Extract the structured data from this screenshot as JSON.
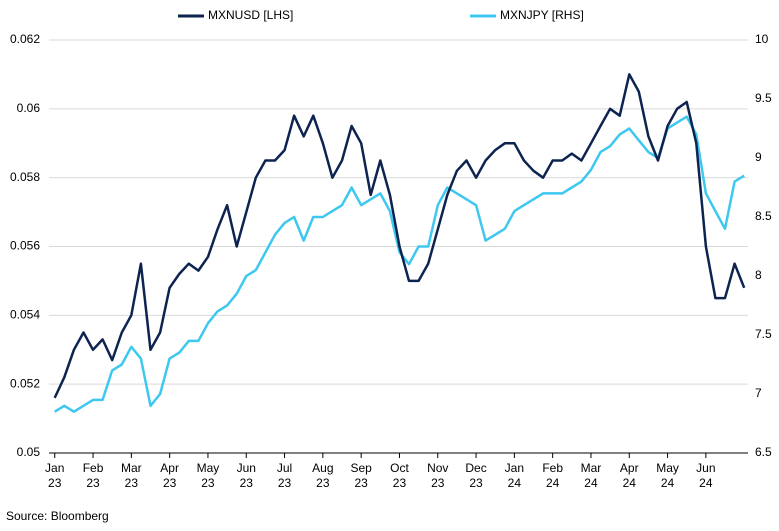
{
  "chart_data": {
    "type": "line",
    "source": "Source: Bloomberg",
    "x": [
      0,
      0.25,
      0.5,
      0.75,
      1,
      1.25,
      1.5,
      1.75,
      2,
      2.25,
      2.5,
      2.75,
      3,
      3.25,
      3.5,
      3.75,
      4,
      4.25,
      4.5,
      4.75,
      5,
      5.25,
      5.5,
      5.75,
      6,
      6.25,
      6.5,
      6.75,
      7,
      7.25,
      7.5,
      7.75,
      8,
      8.25,
      8.5,
      8.75,
      9,
      9.25,
      9.5,
      9.75,
      10,
      10.25,
      10.5,
      10.75,
      11,
      11.25,
      11.5,
      11.75,
      12,
      12.25,
      12.5,
      12.75,
      13,
      13.25,
      13.5,
      13.75,
      14,
      14.25,
      14.5,
      14.75,
      15,
      15.25,
      15.5,
      15.75,
      16,
      16.25,
      16.5,
      16.75,
      17,
      17.25,
      17.5,
      17.75,
      18
    ],
    "xlim": [
      -0.15,
      18.1
    ],
    "xticks": [
      {
        "value": 0,
        "label": "Jan 23"
      },
      {
        "value": 1,
        "label": "Feb 23"
      },
      {
        "value": 2,
        "label": "Mar 23"
      },
      {
        "value": 3,
        "label": "Apr 23"
      },
      {
        "value": 4,
        "label": "May 23"
      },
      {
        "value": 5,
        "label": "Jun 23"
      },
      {
        "value": 6,
        "label": "Jul 23"
      },
      {
        "value": 7,
        "label": "Aug 23"
      },
      {
        "value": 8,
        "label": "Sep 23"
      },
      {
        "value": 9,
        "label": "Oct 23"
      },
      {
        "value": 10,
        "label": "Nov 23"
      },
      {
        "value": 11,
        "label": "Dec 23"
      },
      {
        "value": 12,
        "label": "Jan 24"
      },
      {
        "value": 13,
        "label": "Feb 24"
      },
      {
        "value": 14,
        "label": "Mar 24"
      },
      {
        "value": 15,
        "label": "Apr 24"
      },
      {
        "value": 16,
        "label": "May 24"
      },
      {
        "value": 17,
        "label": "Jun 24"
      }
    ],
    "ylim": [
      0.05,
      0.062
    ],
    "yticks": [
      0.05,
      0.052,
      0.054,
      0.056,
      0.058,
      0.06,
      0.062
    ],
    "y2lim": [
      6.5,
      10
    ],
    "y2ticks": [
      6.5,
      7,
      7.5,
      8,
      8.5,
      9,
      9.5,
      10
    ],
    "grid": true,
    "series": [
      {
        "name": "MXNUSD [LHS]",
        "color": "#0d2350",
        "values": [
          0.0516,
          0.0522,
          0.053,
          0.0535,
          0.053,
          0.0533,
          0.0527,
          0.0535,
          0.054,
          0.0555,
          0.053,
          0.0535,
          0.0548,
          0.0552,
          0.0555,
          0.0553,
          0.0557,
          0.0565,
          0.0572,
          0.056,
          0.057,
          0.058,
          0.0585,
          0.0585,
          0.0588,
          0.0598,
          0.0592,
          0.0598,
          0.059,
          0.058,
          0.0585,
          0.0595,
          0.059,
          0.0575,
          0.0585,
          0.0575,
          0.056,
          0.055,
          0.055,
          0.0555,
          0.0565,
          0.0575,
          0.0582,
          0.0585,
          0.058,
          0.0585,
          0.0588,
          0.059,
          0.059,
          0.0585,
          0.0582,
          0.058,
          0.0585,
          0.0585,
          0.0587,
          0.0585,
          0.059,
          0.0595,
          0.06,
          0.0598,
          0.061,
          0.0605,
          0.0592,
          0.0585,
          0.0595,
          0.06,
          0.0602,
          0.059,
          0.056,
          0.0545,
          0.0545,
          0.0555,
          0.0548
        ]
      },
      {
        "name": "MXNJPY [RHS]",
        "color": "#3ec8f0",
        "axis": "y2",
        "values": [
          6.85,
          6.9,
          6.85,
          6.9,
          6.95,
          6.95,
          7.2,
          7.25,
          7.4,
          7.3,
          6.9,
          7.0,
          7.3,
          7.35,
          7.45,
          7.45,
          7.6,
          7.7,
          7.75,
          7.85,
          8.0,
          8.05,
          8.2,
          8.35,
          8.45,
          8.5,
          8.3,
          8.5,
          8.5,
          8.55,
          8.6,
          8.75,
          8.6,
          8.65,
          8.7,
          8.55,
          8.2,
          8.1,
          8.25,
          8.25,
          8.6,
          8.75,
          8.7,
          8.65,
          8.6,
          8.3,
          8.35,
          8.4,
          8.55,
          8.6,
          8.65,
          8.7,
          8.7,
          8.7,
          8.75,
          8.8,
          8.9,
          9.05,
          9.1,
          9.2,
          9.25,
          9.15,
          9.05,
          9.0,
          9.25,
          9.3,
          9.35,
          9.2,
          8.7,
          8.55,
          8.4,
          8.8,
          8.85
        ]
      }
    ]
  }
}
